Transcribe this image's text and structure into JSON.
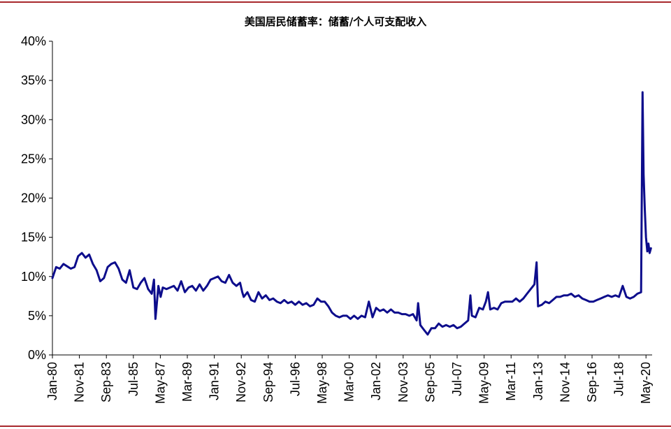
{
  "chart_data": {
    "type": "line",
    "title": "美国居民储蓄率：储蓄/个人可支配收入",
    "xlabel": "",
    "ylabel": "",
    "ylim": [
      0,
      40
    ],
    "yticks": [
      "0%",
      "5%",
      "10%",
      "15%",
      "20%",
      "25%",
      "30%",
      "35%",
      "40%"
    ],
    "ytick_values": [
      0,
      5,
      10,
      15,
      20,
      25,
      30,
      35,
      40
    ],
    "xticks": [
      "Jan-80",
      "Nov-81",
      "Sep-83",
      "Jul-85",
      "May-87",
      "Mar-89",
      "Jan-91",
      "Nov-92",
      "Sep-94",
      "Jul-96",
      "May-98",
      "Mar-00",
      "Jan-02",
      "Nov-03",
      "Sep-05",
      "Jul-07",
      "May-09",
      "Mar-11",
      "Jan-13",
      "Nov-14",
      "Sep-16",
      "Jul-18",
      "May-20"
    ],
    "xtick_values": [
      1980.0,
      1981.833,
      1983.667,
      1985.5,
      1987.333,
      1989.167,
      1991.0,
      1992.833,
      1994.667,
      1996.5,
      1998.333,
      2000.167,
      2002.0,
      2003.833,
      2005.667,
      2007.5,
      2009.333,
      2011.167,
      2013.0,
      2014.833,
      2016.667,
      2018.5,
      2020.333
    ],
    "xlim": [
      1980.0,
      2020.75
    ],
    "color": "#0d0d8c",
    "grid": false,
    "series": [
      {
        "name": "",
        "x": [
          1980.0,
          1980.25,
          1980.5,
          1980.75,
          1981.0,
          1981.25,
          1981.5,
          1981.75,
          1982.0,
          1982.25,
          1982.5,
          1982.75,
          1983.0,
          1983.25,
          1983.5,
          1983.75,
          1984.0,
          1984.25,
          1984.5,
          1984.75,
          1985.0,
          1985.25,
          1985.5,
          1985.75,
          1986.0,
          1986.25,
          1986.5,
          1986.75,
          1986.9,
          1987.0,
          1987.2,
          1987.35,
          1987.5,
          1987.75,
          1988.0,
          1988.25,
          1988.5,
          1988.75,
          1989.0,
          1989.25,
          1989.5,
          1989.75,
          1990.0,
          1990.25,
          1990.5,
          1990.75,
          1991.0,
          1991.25,
          1991.5,
          1991.75,
          1992.0,
          1992.25,
          1992.5,
          1992.75,
          1992.9,
          1993.0,
          1993.25,
          1993.5,
          1993.75,
          1994.0,
          1994.25,
          1994.5,
          1994.75,
          1995.0,
          1995.25,
          1995.5,
          1995.75,
          1996.0,
          1996.25,
          1996.5,
          1996.75,
          1997.0,
          1997.25,
          1997.5,
          1997.75,
          1998.0,
          1998.25,
          1998.5,
          1998.75,
          1999.0,
          1999.25,
          1999.5,
          1999.75,
          2000.0,
          2000.25,
          2000.5,
          2000.75,
          2001.0,
          2001.25,
          2001.5,
          2001.75,
          2002.0,
          2002.25,
          2002.5,
          2002.75,
          2003.0,
          2003.25,
          2003.5,
          2003.75,
          2004.0,
          2004.25,
          2004.5,
          2004.75,
          2004.85,
          2005.0,
          2005.25,
          2005.5,
          2005.75,
          2006.0,
          2006.25,
          2006.5,
          2006.75,
          2007.0,
          2007.25,
          2007.5,
          2007.75,
          2008.0,
          2008.25,
          2008.4,
          2008.5,
          2008.75,
          2009.0,
          2009.25,
          2009.45,
          2009.6,
          2009.75,
          2010.0,
          2010.25,
          2010.5,
          2010.75,
          2011.0,
          2011.25,
          2011.5,
          2011.75,
          2012.0,
          2012.25,
          2012.5,
          2012.75,
          2012.9,
          2013.0,
          2013.25,
          2013.5,
          2013.75,
          2014.0,
          2014.25,
          2014.5,
          2014.75,
          2015.0,
          2015.25,
          2015.5,
          2015.75,
          2016.0,
          2016.25,
          2016.5,
          2016.75,
          2017.0,
          2017.25,
          2017.5,
          2017.75,
          2018.0,
          2018.25,
          2018.5,
          2018.75,
          2019.0,
          2019.25,
          2019.5,
          2019.75,
          2020.0,
          2020.1,
          2020.17,
          2020.25,
          2020.33,
          2020.42,
          2020.5,
          2020.58,
          2020.67
        ],
        "values": [
          9.8,
          11.2,
          11.0,
          11.6,
          11.3,
          11.0,
          11.2,
          12.6,
          13.0,
          12.4,
          12.8,
          11.6,
          10.8,
          9.4,
          9.8,
          11.2,
          11.6,
          11.8,
          11.0,
          9.6,
          9.2,
          10.8,
          8.6,
          8.4,
          9.2,
          9.8,
          8.4,
          7.8,
          9.6,
          4.6,
          8.8,
          7.4,
          8.6,
          8.4,
          8.6,
          8.8,
          8.2,
          9.4,
          8.0,
          8.6,
          8.8,
          8.2,
          9.0,
          8.2,
          8.8,
          9.6,
          9.8,
          10.0,
          9.4,
          9.2,
          10.2,
          9.2,
          8.8,
          9.2,
          8.0,
          7.4,
          8.0,
          7.0,
          6.8,
          8.0,
          7.2,
          7.6,
          7.0,
          7.2,
          6.8,
          6.6,
          7.0,
          6.6,
          6.8,
          6.4,
          6.8,
          6.4,
          6.6,
          6.2,
          6.4,
          7.2,
          6.8,
          6.8,
          6.2,
          5.4,
          5.0,
          4.8,
          5.0,
          5.0,
          4.6,
          5.0,
          4.6,
          5.0,
          4.8,
          6.8,
          4.8,
          6.0,
          5.6,
          5.8,
          5.4,
          5.8,
          5.4,
          5.4,
          5.2,
          5.2,
          5.0,
          5.2,
          4.4,
          6.6,
          3.8,
          3.2,
          2.6,
          3.4,
          3.4,
          4.0,
          3.6,
          3.8,
          3.6,
          3.8,
          3.4,
          3.6,
          4.0,
          4.4,
          7.6,
          5.0,
          4.8,
          6.0,
          5.8,
          6.8,
          8.0,
          5.8,
          6.0,
          5.8,
          6.6,
          6.8,
          6.8,
          6.8,
          7.2,
          6.8,
          7.2,
          7.8,
          8.4,
          9.0,
          11.8,
          6.2,
          6.4,
          6.8,
          6.6,
          7.0,
          7.4,
          7.4,
          7.6,
          7.6,
          7.8,
          7.4,
          7.6,
          7.2,
          7.0,
          6.8,
          6.8,
          7.0,
          7.2,
          7.4,
          7.6,
          7.4,
          7.6,
          7.4,
          8.8,
          7.4,
          7.2,
          7.4,
          7.8,
          8.0,
          33.5,
          23.0,
          18.6,
          15.0,
          13.2,
          14.2,
          13.0,
          13.6
        ]
      }
    ]
  }
}
